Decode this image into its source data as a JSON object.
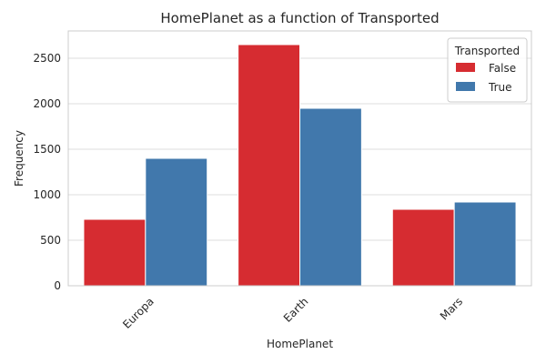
{
  "chart_data": {
    "type": "bar",
    "title": "HomePlanet as a function of Transported",
    "xlabel": "HomePlanet",
    "ylabel": "Frequency",
    "categories": [
      "Europa",
      "Earth",
      "Mars"
    ],
    "series": [
      {
        "name": "False",
        "values": [
          730,
          2650,
          840
        ],
        "color": "#d62c31"
      },
      {
        "name": "True",
        "values": [
          1400,
          1950,
          920
        ],
        "color": "#4178ac"
      }
    ],
    "ylim": [
      0,
      2800
    ],
    "yticks": [
      0,
      500,
      1000,
      1500,
      2000,
      2500
    ],
    "grid": true,
    "grid_axis": "y",
    "legend": {
      "title": "Transported",
      "placement": "top-right"
    },
    "xtick_rotation_deg": 45
  }
}
